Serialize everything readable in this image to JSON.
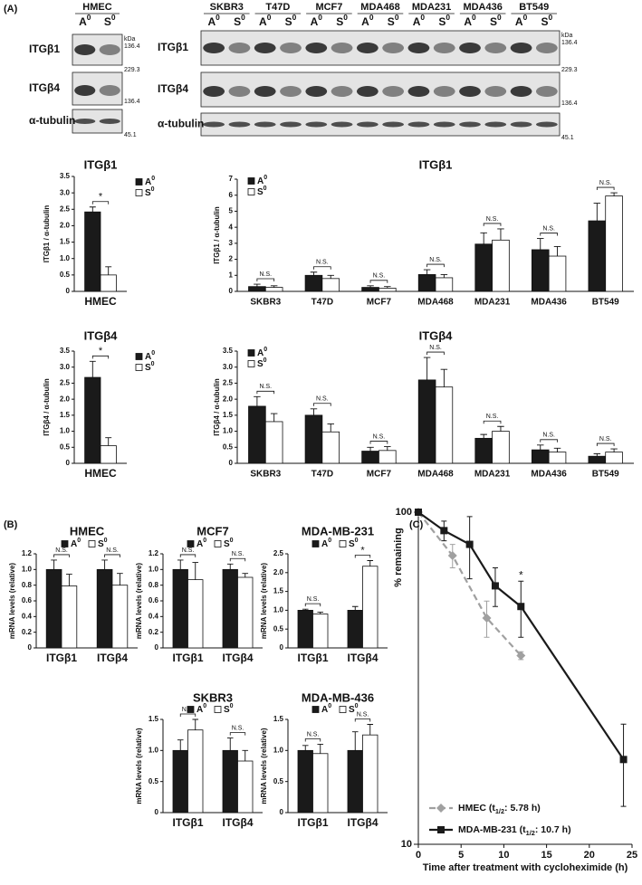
{
  "panel_labels": [
    "(A)",
    "(B)",
    "(C)"
  ],
  "blots": {
    "hmec_title": "HMEC",
    "cell_lines": [
      "SKBR3",
      "T47D",
      "MCF7",
      "MDA468",
      "MDA231",
      "MDA436",
      "BT549"
    ],
    "lane_labels": [
      "A",
      "S"
    ],
    "lane_sup": "0",
    "rows": [
      "ITGβ1",
      "ITGβ4",
      "α-tubulin"
    ],
    "kda": "kDa",
    "markers": [
      [
        "136.4"
      ],
      [
        "229.3",
        "136.4"
      ],
      [
        "45.1"
      ]
    ]
  },
  "chart_data": [
    {
      "type": "bar",
      "title": "ITGβ1",
      "ylabel": "ITGβ1 / α-tubulin",
      "categories": [
        "HMEC"
      ],
      "ylim": [
        0,
        3.5
      ],
      "yticks": [
        0,
        0.5,
        {
          "value": 1,
          "label": "1.0"
        },
        1.5,
        {
          "value": 2,
          "label": "2.0"
        },
        2.5,
        {
          "value": 3,
          "label": "3.0"
        },
        3.5
      ],
      "legend": "outside-right",
      "annotations": [
        "*"
      ],
      "series": [
        {
          "name": "A",
          "name_sup": "0",
          "color": "#1a1a1a",
          "values": [
            2.42
          ],
          "errors": [
            0.15
          ]
        },
        {
          "name": "S",
          "name_sup": "0",
          "color": "#ffffff",
          "values": [
            0.5
          ],
          "errors": [
            0.25
          ]
        }
      ]
    },
    {
      "type": "bar",
      "title": "ITGβ1",
      "ylabel": "ITGβ1 / α-tubulin",
      "categories": [
        "SKBR3",
        "T47D",
        "MCF7",
        "MDA468",
        "MDA231",
        "MDA436",
        "BT549"
      ],
      "ylim": [
        0,
        7
      ],
      "yticks": [
        0,
        1,
        2,
        3,
        4,
        5,
        6,
        7
      ],
      "legend": "top-left",
      "annotations": [
        "N.S.",
        "N.S.",
        "N.S.",
        "N.S.",
        "N.S.",
        "N.S.",
        "N.S."
      ],
      "series": [
        {
          "name": "A",
          "name_sup": "0",
          "color": "#1a1a1a",
          "values": [
            0.3,
            1.0,
            0.25,
            1.05,
            2.95,
            2.6,
            4.4
          ],
          "errors": [
            0.15,
            0.2,
            0.1,
            0.3,
            0.7,
            0.7,
            1.1
          ]
        },
        {
          "name": "S",
          "name_sup": "0",
          "color": "#ffffff",
          "values": [
            0.25,
            0.8,
            0.2,
            0.85,
            3.2,
            2.2,
            5.95
          ],
          "errors": [
            0.1,
            0.2,
            0.1,
            0.2,
            0.7,
            0.6,
            0.2
          ]
        }
      ]
    },
    {
      "type": "bar",
      "title": "ITGβ4",
      "ylabel": "ITGβ4 / α-tubulin",
      "categories": [
        "HMEC"
      ],
      "ylim": [
        0,
        3.5
      ],
      "yticks": [
        0,
        0.5,
        {
          "value": 1,
          "label": "1.0"
        },
        1.5,
        {
          "value": 2,
          "label": "2.0"
        },
        2.5,
        {
          "value": 3,
          "label": "3.0"
        },
        3.5
      ],
      "legend": "outside-right",
      "annotations": [
        "*"
      ],
      "series": [
        {
          "name": "A",
          "name_sup": "0",
          "color": "#1a1a1a",
          "values": [
            2.68
          ],
          "errors": [
            0.5
          ]
        },
        {
          "name": "S",
          "name_sup": "0",
          "color": "#ffffff",
          "values": [
            0.55
          ],
          "errors": [
            0.25
          ]
        }
      ]
    },
    {
      "type": "bar",
      "title": "ITGβ4",
      "ylabel": "ITGβ4 / α-tubulin",
      "categories": [
        "SKBR3",
        "T47D",
        "MCF7",
        "MDA468",
        "MDA231",
        "MDA436",
        "BT549"
      ],
      "ylim": [
        0,
        3.5
      ],
      "yticks": [
        0,
        0.5,
        {
          "value": 1,
          "label": "1.0"
        },
        1.5,
        {
          "value": 2,
          "label": "2.0"
        },
        2.5,
        {
          "value": 3,
          "label": "3.0"
        },
        3.5
      ],
      "legend": "top-left",
      "annotations": [
        "N.S.",
        "N.S.",
        "N.S.",
        "N.S.",
        "N.S.",
        "N.S.",
        "N.S."
      ],
      "series": [
        {
          "name": "A",
          "name_sup": "0",
          "color": "#1a1a1a",
          "values": [
            1.78,
            1.5,
            0.38,
            2.6,
            0.78,
            0.42,
            0.22
          ],
          "errors": [
            0.3,
            0.2,
            0.12,
            0.7,
            0.12,
            0.15,
            0.08
          ]
        },
        {
          "name": "S",
          "name_sup": "0",
          "color": "#ffffff",
          "values": [
            1.3,
            0.98,
            0.4,
            2.38,
            1.0,
            0.35,
            0.35
          ],
          "errors": [
            0.25,
            0.25,
            0.12,
            0.55,
            0.15,
            0.12,
            0.1
          ]
        }
      ]
    },
    {
      "type": "bar",
      "title": "HMEC",
      "ylabel": "mRNA levels (relative)",
      "categories": [
        "ITGβ1",
        "ITGβ4"
      ],
      "ylim": [
        0,
        1.2
      ],
      "yticks": [
        0,
        0.2,
        0.4,
        0.6,
        0.8,
        {
          "value": 1,
          "label": "1.0"
        },
        1.2
      ],
      "legend": "top",
      "annotations": [
        "N.S.",
        "N.S."
      ],
      "series": [
        {
          "name": "A",
          "name_sup": "0",
          "color": "#1a1a1a",
          "values": [
            1.0,
            1.0
          ],
          "errors": [
            0.12,
            0.12
          ]
        },
        {
          "name": "S",
          "name_sup": "0",
          "color": "#ffffff",
          "values": [
            0.79,
            0.8
          ],
          "errors": [
            0.15,
            0.15
          ]
        }
      ]
    },
    {
      "type": "bar",
      "title": "MCF7",
      "ylabel": "mRNA levels (relative)",
      "categories": [
        "ITGβ1",
        "ITGβ4"
      ],
      "ylim": [
        0,
        1.2
      ],
      "yticks": [
        0,
        0.2,
        0.4,
        0.6,
        0.8,
        {
          "value": 1,
          "label": "1.0"
        },
        1.2
      ],
      "legend": "top",
      "annotations": [
        "N.S.",
        "N.S."
      ],
      "series": [
        {
          "name": "A",
          "name_sup": "0",
          "color": "#1a1a1a",
          "values": [
            1.0,
            1.0
          ],
          "errors": [
            0.12,
            0.07
          ]
        },
        {
          "name": "S",
          "name_sup": "0",
          "color": "#ffffff",
          "values": [
            0.87,
            0.9
          ],
          "errors": [
            0.22,
            0.05
          ]
        }
      ]
    },
    {
      "type": "bar",
      "title": "MDA-MB-231",
      "ylabel": "mRNA levels (relative)",
      "categories": [
        "ITGβ1",
        "ITGβ4"
      ],
      "ylim": [
        0,
        2.5
      ],
      "yticks": [
        0,
        0.5,
        {
          "value": 1,
          "label": "1.0"
        },
        1.5,
        {
          "value": 2,
          "label": "2.0"
        },
        2.5
      ],
      "legend": "top",
      "annotations": [
        "N.S.",
        "*"
      ],
      "series": [
        {
          "name": "A",
          "name_sup": "0",
          "color": "#1a1a1a",
          "values": [
            1.0,
            1.0
          ],
          "errors": [
            0.03,
            0.1
          ]
        },
        {
          "name": "S",
          "name_sup": "0",
          "color": "#ffffff",
          "values": [
            0.9,
            2.17
          ],
          "errors": [
            0.05,
            0.15
          ]
        }
      ]
    },
    {
      "type": "bar",
      "title": "SKBR3",
      "ylabel": "mRNA levels (relative)",
      "categories": [
        "ITGβ1",
        "ITGβ4"
      ],
      "ylim": [
        0,
        1.5
      ],
      "yticks": [
        0,
        0.5,
        {
          "value": 1,
          "label": "1.0"
        },
        1.5
      ],
      "legend": "top",
      "annotations": [
        "N.S.",
        "N.S."
      ],
      "series": [
        {
          "name": "A",
          "name_sup": "0",
          "color": "#1a1a1a",
          "values": [
            1.0,
            1.0
          ],
          "errors": [
            0.17,
            0.2
          ]
        },
        {
          "name": "S",
          "name_sup": "0",
          "color": "#ffffff",
          "values": [
            1.33,
            0.83
          ],
          "errors": [
            0.17,
            0.17
          ]
        }
      ]
    },
    {
      "type": "bar",
      "title": "MDA-MB-436",
      "ylabel": "mRNA levels (relative)",
      "categories": [
        "ITGβ1",
        "ITGβ4"
      ],
      "ylim": [
        0,
        1.5
      ],
      "yticks": [
        0,
        0.5,
        {
          "value": 1,
          "label": "1.0"
        },
        1.5
      ],
      "legend": "top",
      "annotations": [
        "N.S.",
        "N.S."
      ],
      "series": [
        {
          "name": "A",
          "name_sup": "0",
          "color": "#1a1a1a",
          "values": [
            1.0,
            1.0
          ],
          "errors": [
            0.08,
            0.3
          ]
        },
        {
          "name": "S",
          "name_sup": "0",
          "color": "#ffffff",
          "values": [
            0.95,
            1.25
          ],
          "errors": [
            0.15,
            0.17
          ]
        }
      ]
    },
    {
      "type": "line",
      "xlabel": "Time after treatment with cycloheximide (h)",
      "ylabel": "% remaining",
      "xlim": [
        0,
        25
      ],
      "xticks": [
        0,
        5,
        10,
        15,
        20,
        25
      ],
      "ylim": [
        10,
        100
      ],
      "yticks": [
        10,
        100
      ],
      "ylog": true,
      "legend": "bottom-left",
      "series": [
        {
          "name": "HMEC (t",
          "name_sub": "1/2",
          "name_tail": ": 5.78 h)",
          "color": "#a0a0a0",
          "marker": "diamond",
          "dash": true,
          "x": [
            0,
            4,
            8,
            12
          ],
          "values": [
            100,
            74,
            48,
            37
          ],
          "errors": [
            0,
            6,
            6,
            1
          ],
          "point_labels": [
            null,
            null,
            null,
            null
          ]
        },
        {
          "name": "MDA-MB-231 (t",
          "name_sub": "1/2",
          "name_tail": ": 10.7 h)",
          "color": "#1a1a1a",
          "marker": "square",
          "dash": false,
          "x": [
            0,
            3,
            6,
            9,
            12,
            24
          ],
          "values": [
            100,
            88,
            80,
            60,
            52,
            18
          ],
          "errors": [
            0,
            6,
            17,
            8,
            10,
            5
          ],
          "point_labels": [
            null,
            null,
            null,
            null,
            "*",
            null
          ]
        }
      ]
    }
  ]
}
